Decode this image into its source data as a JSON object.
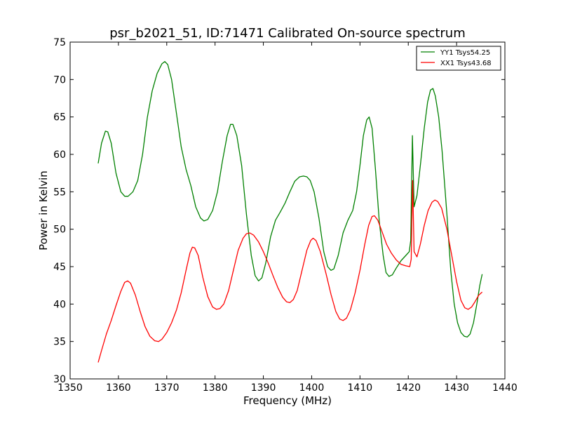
{
  "chart_data": {
    "type": "line",
    "title": "psr_b2021_51, ID:71471 Calibrated On-source spectrum",
    "xlabel": "Frequency (MHz)",
    "ylabel": "Power in Kelvin",
    "xlim": [
      1350,
      1440
    ],
    "ylim": [
      30,
      75
    ],
    "xticks": [
      1350,
      1360,
      1370,
      1380,
      1390,
      1400,
      1410,
      1420,
      1430,
      1440
    ],
    "yticks": [
      30,
      35,
      40,
      45,
      50,
      55,
      60,
      65,
      70,
      75
    ],
    "grid": false,
    "legend_position": "top-right",
    "series": [
      {
        "name": "YY1 Tsys54.25",
        "color": "#008000",
        "points": [
          [
            1355.8,
            58.8
          ],
          [
            1356.5,
            61.5
          ],
          [
            1357.3,
            63.1
          ],
          [
            1357.8,
            63.0
          ],
          [
            1358.5,
            61.5
          ],
          [
            1359.5,
            57.5
          ],
          [
            1360.5,
            55.0
          ],
          [
            1361.3,
            54.4
          ],
          [
            1362.0,
            54.4
          ],
          [
            1363.0,
            55.0
          ],
          [
            1364.0,
            56.5
          ],
          [
            1365.0,
            60.0
          ],
          [
            1366.0,
            65.0
          ],
          [
            1367.0,
            68.5
          ],
          [
            1368.0,
            70.8
          ],
          [
            1369.0,
            72.1
          ],
          [
            1369.6,
            72.4
          ],
          [
            1370.2,
            72.0
          ],
          [
            1371.0,
            70.0
          ],
          [
            1372.0,
            65.5
          ],
          [
            1373.0,
            61.0
          ],
          [
            1374.0,
            58.0
          ],
          [
            1375.0,
            55.8
          ],
          [
            1376.0,
            53.0
          ],
          [
            1377.0,
            51.5
          ],
          [
            1377.7,
            51.1
          ],
          [
            1378.5,
            51.3
          ],
          [
            1379.5,
            52.5
          ],
          [
            1380.5,
            55.0
          ],
          [
            1381.5,
            59.0
          ],
          [
            1382.5,
            62.5
          ],
          [
            1383.2,
            64.0
          ],
          [
            1383.7,
            64.0
          ],
          [
            1384.5,
            62.5
          ],
          [
            1385.5,
            58.5
          ],
          [
            1386.5,
            52.0
          ],
          [
            1387.5,
            46.5
          ],
          [
            1388.3,
            43.8
          ],
          [
            1389.0,
            43.1
          ],
          [
            1389.7,
            43.5
          ],
          [
            1390.5,
            45.5
          ],
          [
            1391.5,
            49.0
          ],
          [
            1392.5,
            51.2
          ],
          [
            1393.5,
            52.3
          ],
          [
            1394.5,
            53.5
          ],
          [
            1395.5,
            55.0
          ],
          [
            1396.5,
            56.4
          ],
          [
            1397.5,
            57.0
          ],
          [
            1398.3,
            57.1
          ],
          [
            1399.0,
            57.0
          ],
          [
            1399.7,
            56.5
          ],
          [
            1400.5,
            55.0
          ],
          [
            1401.5,
            51.5
          ],
          [
            1402.5,
            47.0
          ],
          [
            1403.3,
            45.0
          ],
          [
            1404.0,
            44.5
          ],
          [
            1404.6,
            44.7
          ],
          [
            1405.5,
            46.5
          ],
          [
            1406.5,
            49.5
          ],
          [
            1407.5,
            51.2
          ],
          [
            1408.5,
            52.5
          ],
          [
            1409.3,
            55.0
          ],
          [
            1410.0,
            58.5
          ],
          [
            1410.7,
            62.5
          ],
          [
            1411.4,
            64.6
          ],
          [
            1411.9,
            65.0
          ],
          [
            1412.5,
            63.5
          ],
          [
            1413.2,
            58.0
          ],
          [
            1414.0,
            51.0
          ],
          [
            1414.8,
            46.5
          ],
          [
            1415.4,
            44.2
          ],
          [
            1416.0,
            43.7
          ],
          [
            1416.7,
            43.9
          ],
          [
            1417.5,
            44.8
          ],
          [
            1418.5,
            45.8
          ],
          [
            1419.5,
            46.5
          ],
          [
            1420.2,
            47.0
          ],
          [
            1420.5,
            48.5
          ],
          [
            1420.85,
            62.5
          ],
          [
            1421.2,
            53.0
          ],
          [
            1421.8,
            54.5
          ],
          [
            1422.5,
            58.5
          ],
          [
            1423.3,
            63.5
          ],
          [
            1424.0,
            67.0
          ],
          [
            1424.6,
            68.6
          ],
          [
            1425.1,
            68.8
          ],
          [
            1425.6,
            67.8
          ],
          [
            1426.3,
            65.0
          ],
          [
            1427.0,
            60.5
          ],
          [
            1428.0,
            52.0
          ],
          [
            1428.8,
            44.5
          ],
          [
            1429.5,
            40.0
          ],
          [
            1430.2,
            37.5
          ],
          [
            1430.9,
            36.2
          ],
          [
            1431.6,
            35.7
          ],
          [
            1432.2,
            35.6
          ],
          [
            1432.8,
            36.0
          ],
          [
            1433.5,
            37.5
          ],
          [
            1434.2,
            40.0
          ],
          [
            1434.8,
            42.5
          ],
          [
            1435.3,
            44.0
          ]
        ]
      },
      {
        "name": "XX1 Tsys43.68",
        "color": "#ff0000",
        "points": [
          [
            1355.8,
            32.2
          ],
          [
            1356.5,
            33.8
          ],
          [
            1357.5,
            36.0
          ],
          [
            1358.5,
            37.8
          ],
          [
            1359.5,
            39.8
          ],
          [
            1360.5,
            41.7
          ],
          [
            1361.3,
            42.9
          ],
          [
            1361.9,
            43.1
          ],
          [
            1362.5,
            42.8
          ],
          [
            1363.5,
            41.2
          ],
          [
            1364.5,
            39.0
          ],
          [
            1365.5,
            37.0
          ],
          [
            1366.5,
            35.7
          ],
          [
            1367.5,
            35.1
          ],
          [
            1368.3,
            35.0
          ],
          [
            1369.0,
            35.3
          ],
          [
            1370.0,
            36.2
          ],
          [
            1371.0,
            37.5
          ],
          [
            1372.0,
            39.2
          ],
          [
            1373.0,
            41.5
          ],
          [
            1374.0,
            44.5
          ],
          [
            1374.8,
            46.8
          ],
          [
            1375.3,
            47.6
          ],
          [
            1375.8,
            47.5
          ],
          [
            1376.5,
            46.5
          ],
          [
            1377.5,
            43.5
          ],
          [
            1378.5,
            41.0
          ],
          [
            1379.5,
            39.6
          ],
          [
            1380.3,
            39.3
          ],
          [
            1381.0,
            39.4
          ],
          [
            1381.8,
            40.0
          ],
          [
            1382.8,
            41.8
          ],
          [
            1383.8,
            44.5
          ],
          [
            1384.8,
            47.2
          ],
          [
            1385.8,
            48.8
          ],
          [
            1386.5,
            49.4
          ],
          [
            1387.2,
            49.5
          ],
          [
            1388.0,
            49.2
          ],
          [
            1389.0,
            48.3
          ],
          [
            1390.0,
            47.0
          ],
          [
            1391.0,
            45.5
          ],
          [
            1392.0,
            43.8
          ],
          [
            1393.0,
            42.2
          ],
          [
            1394.0,
            40.9
          ],
          [
            1394.8,
            40.3
          ],
          [
            1395.5,
            40.2
          ],
          [
            1396.2,
            40.6
          ],
          [
            1397.0,
            41.8
          ],
          [
            1398.0,
            44.5
          ],
          [
            1399.0,
            47.2
          ],
          [
            1399.8,
            48.5
          ],
          [
            1400.3,
            48.8
          ],
          [
            1400.9,
            48.5
          ],
          [
            1401.8,
            47.0
          ],
          [
            1403.0,
            44.0
          ],
          [
            1404.0,
            41.3
          ],
          [
            1405.0,
            39.0
          ],
          [
            1405.8,
            38.0
          ],
          [
            1406.5,
            37.8
          ],
          [
            1407.2,
            38.1
          ],
          [
            1408.0,
            39.2
          ],
          [
            1409.0,
            41.5
          ],
          [
            1410.0,
            44.5
          ],
          [
            1411.0,
            48.0
          ],
          [
            1411.8,
            50.5
          ],
          [
            1412.5,
            51.7
          ],
          [
            1413.0,
            51.8
          ],
          [
            1413.7,
            51.2
          ],
          [
            1414.5,
            49.8
          ],
          [
            1415.5,
            48.0
          ],
          [
            1416.5,
            46.8
          ],
          [
            1417.5,
            45.9
          ],
          [
            1418.5,
            45.3
          ],
          [
            1419.5,
            45.1
          ],
          [
            1420.3,
            45.0
          ],
          [
            1420.6,
            46.0
          ],
          [
            1420.9,
            56.5
          ],
          [
            1421.2,
            47.0
          ],
          [
            1421.8,
            46.3
          ],
          [
            1422.5,
            48.0
          ],
          [
            1423.3,
            50.5
          ],
          [
            1424.1,
            52.5
          ],
          [
            1424.9,
            53.6
          ],
          [
            1425.5,
            53.9
          ],
          [
            1426.1,
            53.7
          ],
          [
            1426.9,
            52.8
          ],
          [
            1428.0,
            50.0
          ],
          [
            1429.0,
            46.5
          ],
          [
            1430.0,
            43.0
          ],
          [
            1430.9,
            40.5
          ],
          [
            1431.7,
            39.5
          ],
          [
            1432.4,
            39.3
          ],
          [
            1433.1,
            39.6
          ],
          [
            1433.8,
            40.3
          ],
          [
            1434.6,
            41.2
          ],
          [
            1435.3,
            41.6
          ]
        ]
      }
    ]
  }
}
